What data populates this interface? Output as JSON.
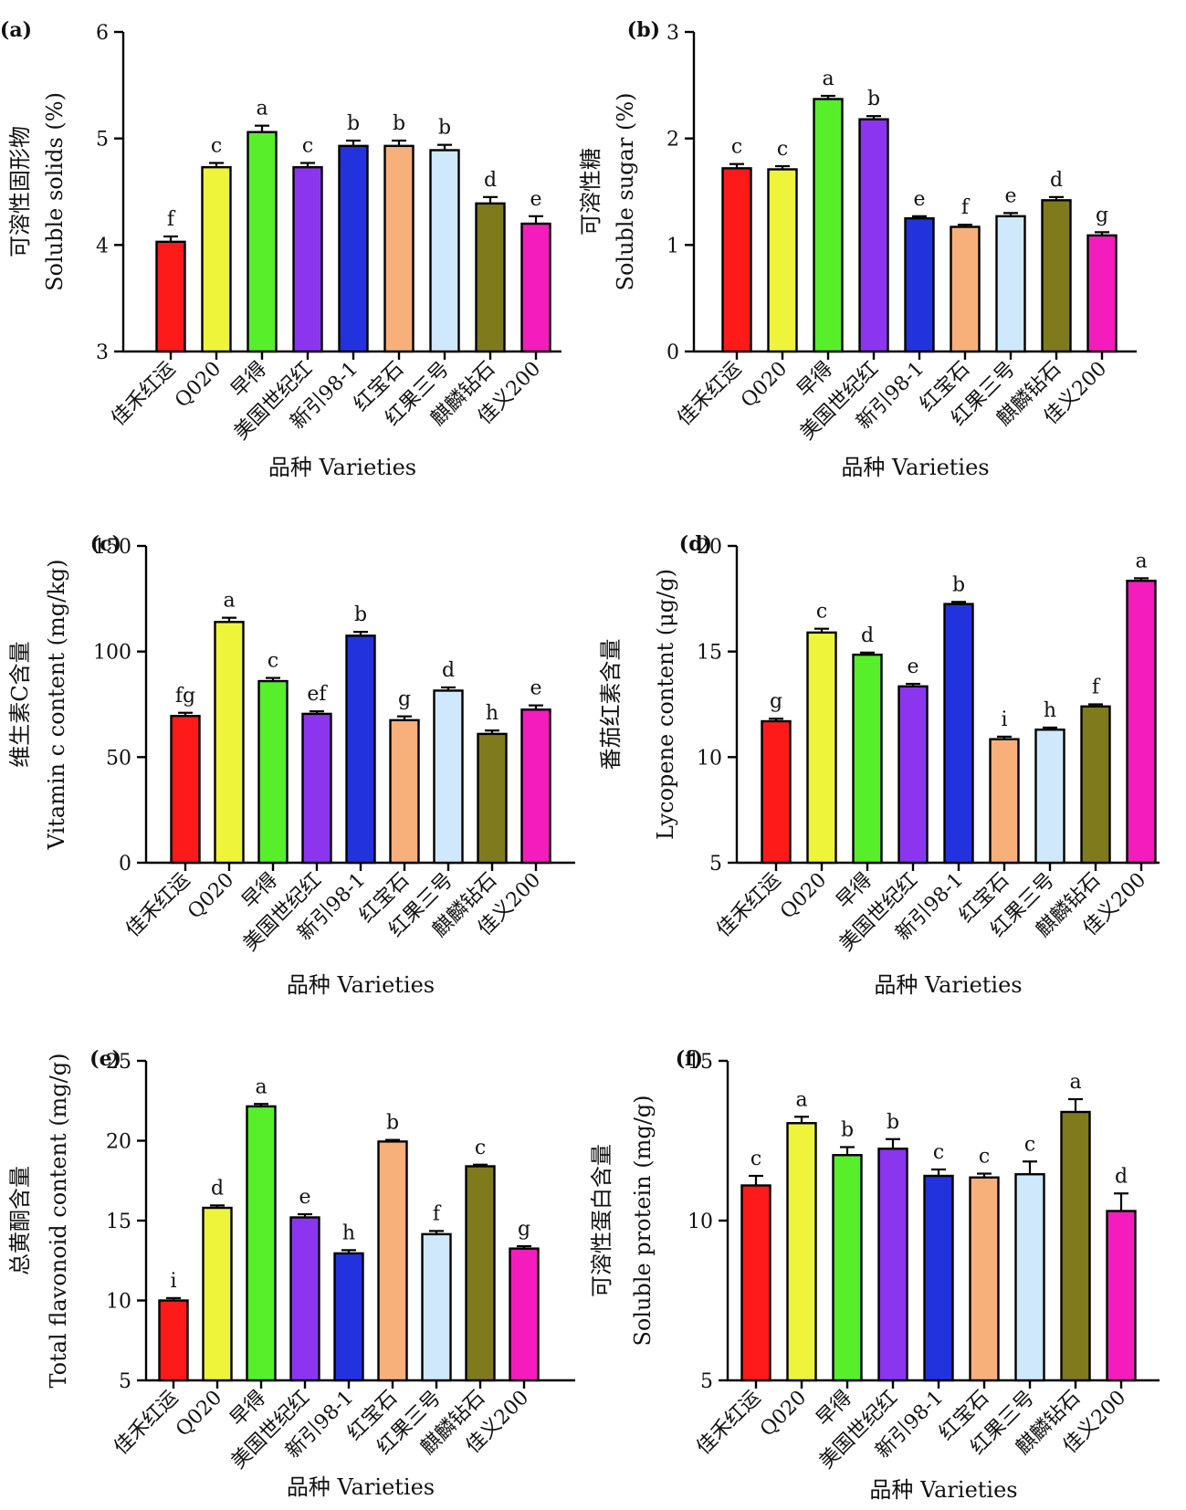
{
  "categories": [
    "佳禾红运",
    "Q020",
    "早得",
    "美国世纪红",
    "新引98-1",
    "红宝石",
    "红果三号",
    "麒麟钻石",
    "佳义200"
  ],
  "bar_colors": [
    "#ff1a1a",
    "#eef43a",
    "#57ee2a",
    "#8b36ee",
    "#2233dd",
    "#f8b07a",
    "#cfe8fb",
    "#7f7a1c",
    "#f41cbd"
  ],
  "xlabel": "品种 Varieties",
  "chart_data": [
    {
      "type": "bar",
      "panel": "(a)",
      "ylabel_cn": "可溶性固形物",
      "ylabel_en": "Soluble solids  (%)",
      "ylim": [
        3,
        6
      ],
      "yticks": [
        "3",
        "4",
        "5",
        "6"
      ],
      "values": [
        4.03,
        4.73,
        5.06,
        4.73,
        4.93,
        4.93,
        4.89,
        4.39,
        4.2
      ],
      "errors": [
        0.05,
        0.04,
        0.06,
        0.04,
        0.05,
        0.05,
        0.05,
        0.06,
        0.07
      ],
      "letters": [
        "f",
        "c",
        "a",
        "c",
        "b",
        "b",
        "b",
        "d",
        "e"
      ]
    },
    {
      "type": "bar",
      "panel": "(b)",
      "ylabel_cn": "可溶性糖",
      "ylabel_en": "Soluble sugar  (%)",
      "ylim": [
        0,
        3
      ],
      "yticks": [
        "0",
        "1",
        "2",
        "3"
      ],
      "values": [
        1.72,
        1.71,
        2.37,
        2.18,
        1.25,
        1.17,
        1.27,
        1.42,
        1.09
      ],
      "errors": [
        0.04,
        0.03,
        0.03,
        0.03,
        0.02,
        0.02,
        0.03,
        0.03,
        0.03
      ],
      "letters": [
        "c",
        "c",
        "a",
        "b",
        "e",
        "f",
        "e",
        "d",
        "g"
      ]
    },
    {
      "type": "bar",
      "panel": "(c)",
      "ylabel_cn": "维生素C含量",
      "ylabel_en": "Vitamin c content (mg/kg)",
      "ylim": [
        0,
        150
      ],
      "yticks": [
        "0",
        "50",
        "100",
        "150"
      ],
      "values": [
        69.5,
        114.0,
        86.0,
        70.5,
        107.5,
        67.5,
        81.5,
        61.0,
        72.5
      ],
      "errors": [
        1.5,
        2.0,
        1.5,
        1.2,
        1.8,
        1.8,
        1.5,
        1.6,
        2.0
      ],
      "letters": [
        "fg",
        "a",
        "c",
        "ef",
        "b",
        "g",
        "d",
        "h",
        "e"
      ]
    },
    {
      "type": "bar",
      "panel": "(d)",
      "ylabel_cn": "番茄红素含量",
      "ylabel_en": "Lycopene content  (μg/g)",
      "ylim": [
        5,
        20
      ],
      "yticks": [
        "5",
        "10",
        "15",
        "20"
      ],
      "values": [
        11.7,
        15.9,
        14.85,
        13.35,
        17.25,
        10.85,
        11.3,
        12.4,
        18.35
      ],
      "errors": [
        0.12,
        0.18,
        0.1,
        0.12,
        0.1,
        0.12,
        0.1,
        0.1,
        0.12
      ],
      "letters": [
        "g",
        "c",
        "d",
        "e",
        "b",
        "i",
        "h",
        "f",
        "a"
      ]
    },
    {
      "type": "bar",
      "panel": "(e)",
      "ylabel_cn": "总黄酮含量",
      "ylabel_en": "Total flavonoid content (mg/g)",
      "ylim": [
        5,
        25
      ],
      "yticks": [
        "5",
        "10",
        "15",
        "20",
        "25"
      ],
      "values": [
        10.0,
        15.8,
        22.15,
        15.2,
        12.95,
        19.95,
        14.15,
        18.4,
        13.25
      ],
      "errors": [
        0.15,
        0.15,
        0.15,
        0.2,
        0.2,
        0.1,
        0.2,
        0.1,
        0.15
      ],
      "letters": [
        "i",
        "d",
        "a",
        "e",
        "h",
        "b",
        "f",
        "c",
        "g"
      ]
    },
    {
      "type": "bar",
      "panel": "(f)",
      "ylabel_cn": "可溶性蛋白含量",
      "ylabel_en": "Soluble protein  (mg/g)",
      "ylim": [
        5,
        15
      ],
      "yticks": [
        "5",
        "10",
        "15"
      ],
      "values": [
        11.1,
        13.05,
        12.05,
        12.25,
        11.4,
        11.35,
        11.45,
        13.4,
        10.3
      ],
      "errors": [
        0.3,
        0.2,
        0.25,
        0.3,
        0.2,
        0.12,
        0.4,
        0.4,
        0.55
      ],
      "letters": [
        "c",
        "a",
        "b",
        "b",
        "c",
        "c",
        "c",
        "a",
        "d"
      ]
    }
  ]
}
